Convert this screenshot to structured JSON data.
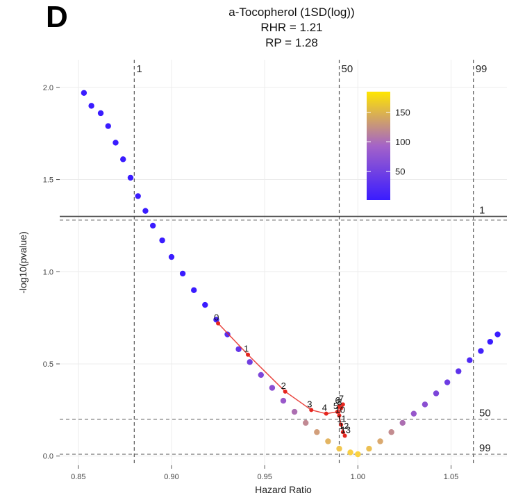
{
  "panel_letter": "D",
  "chart_data": {
    "type": "scatter",
    "title": "a-Tocopherol (1SD(log))",
    "subtitle_lines": [
      "RHR = 1.21",
      "RP = 1.28"
    ],
    "xlabel": "Hazard Ratio",
    "ylabel": "-log10(pvalue)",
    "xlim": [
      0.84,
      1.08
    ],
    "ylim": [
      -0.05,
      2.15
    ],
    "x_ticks": [
      "0.85",
      "0.90",
      "0.95",
      "1.00",
      "1.05"
    ],
    "x_tick_values": [
      0.85,
      0.9,
      0.95,
      1.0,
      1.05
    ],
    "y_ticks": [
      "0.0",
      "0.5",
      "1.0",
      "1.5",
      "2.0"
    ],
    "y_tick_values": [
      0.0,
      0.5,
      1.0,
      1.5,
      2.0
    ],
    "grid": true,
    "vertical_reference_lines": [
      {
        "x": 0.88,
        "label": "1"
      },
      {
        "x": 0.99,
        "label": "50"
      },
      {
        "x": 1.062,
        "label": "99"
      }
    ],
    "horizontal_reference_lines": [
      {
        "y": 1.3,
        "label": "1",
        "style": "solid"
      },
      {
        "y": 1.28,
        "label": "",
        "style": "dashed"
      },
      {
        "y": 0.2,
        "label": "50",
        "style": "dashed"
      },
      {
        "y": 0.01,
        "label": "99",
        "style": "dashed"
      }
    ],
    "colorbar": {
      "ticks": [
        "150",
        "100",
        "50"
      ],
      "tick_values": [
        150,
        100,
        50
      ],
      "range": [
        1,
        185
      ],
      "colors": [
        "#3a1cff",
        "#a463c8",
        "#ffe600"
      ],
      "legend_placement": "top-right"
    },
    "point_colors": {
      "low": "#3a1cff",
      "mid": "#9b59c9",
      "high": "#ffd83a",
      "path": "#e5261f"
    },
    "left_branch": [
      {
        "x": 0.853,
        "y": 1.97
      },
      {
        "x": 0.857,
        "y": 1.9
      },
      {
        "x": 0.862,
        "y": 1.86
      },
      {
        "x": 0.866,
        "y": 1.79
      },
      {
        "x": 0.87,
        "y": 1.7
      },
      {
        "x": 0.874,
        "y": 1.61
      },
      {
        "x": 0.878,
        "y": 1.51
      },
      {
        "x": 0.882,
        "y": 1.41
      },
      {
        "x": 0.886,
        "y": 1.33
      },
      {
        "x": 0.89,
        "y": 1.25
      },
      {
        "x": 0.895,
        "y": 1.17
      },
      {
        "x": 0.9,
        "y": 1.08
      },
      {
        "x": 0.906,
        "y": 0.99
      },
      {
        "x": 0.912,
        "y": 0.9
      },
      {
        "x": 0.918,
        "y": 0.82
      },
      {
        "x": 0.924,
        "y": 0.74
      },
      {
        "x": 0.93,
        "y": 0.66
      },
      {
        "x": 0.936,
        "y": 0.58
      },
      {
        "x": 0.942,
        "y": 0.51
      },
      {
        "x": 0.948,
        "y": 0.44
      },
      {
        "x": 0.954,
        "y": 0.37
      },
      {
        "x": 0.96,
        "y": 0.3
      },
      {
        "x": 0.966,
        "y": 0.24
      },
      {
        "x": 0.972,
        "y": 0.18
      },
      {
        "x": 0.978,
        "y": 0.13
      },
      {
        "x": 0.984,
        "y": 0.08
      },
      {
        "x": 0.99,
        "y": 0.04
      },
      {
        "x": 0.996,
        "y": 0.02
      },
      {
        "x": 1.0,
        "y": 0.01
      }
    ],
    "right_branch": [
      {
        "x": 1.0,
        "y": 0.01
      },
      {
        "x": 1.006,
        "y": 0.04
      },
      {
        "x": 1.012,
        "y": 0.08
      },
      {
        "x": 1.018,
        "y": 0.13
      },
      {
        "x": 1.024,
        "y": 0.18
      },
      {
        "x": 1.03,
        "y": 0.23
      },
      {
        "x": 1.036,
        "y": 0.28
      },
      {
        "x": 1.042,
        "y": 0.34
      },
      {
        "x": 1.048,
        "y": 0.4
      },
      {
        "x": 1.054,
        "y": 0.46
      },
      {
        "x": 1.06,
        "y": 0.52
      },
      {
        "x": 1.066,
        "y": 0.57
      },
      {
        "x": 1.071,
        "y": 0.62
      },
      {
        "x": 1.075,
        "y": 0.66
      }
    ],
    "path_points": [
      {
        "x": 0.925,
        "y": 0.72,
        "label": "0"
      },
      {
        "x": 0.941,
        "y": 0.55,
        "label": "1"
      },
      {
        "x": 0.961,
        "y": 0.35,
        "label": "2"
      },
      {
        "x": 0.975,
        "y": 0.25,
        "label": "3"
      },
      {
        "x": 0.983,
        "y": 0.23,
        "label": "4"
      },
      {
        "x": 0.989,
        "y": 0.24,
        "label": "5"
      },
      {
        "x": 0.99,
        "y": 0.27,
        "label": "6"
      },
      {
        "x": 0.992,
        "y": 0.28,
        "label": "7"
      },
      {
        "x": 0.991,
        "y": 0.26,
        "label": "8"
      },
      {
        "x": 0.99,
        "y": 0.22,
        "label": "10"
      },
      {
        "x": 0.991,
        "y": 0.17,
        "label": "11"
      },
      {
        "x": 0.992,
        "y": 0.13,
        "label": "12"
      },
      {
        "x": 0.993,
        "y": 0.11,
        "label": "13"
      }
    ]
  }
}
